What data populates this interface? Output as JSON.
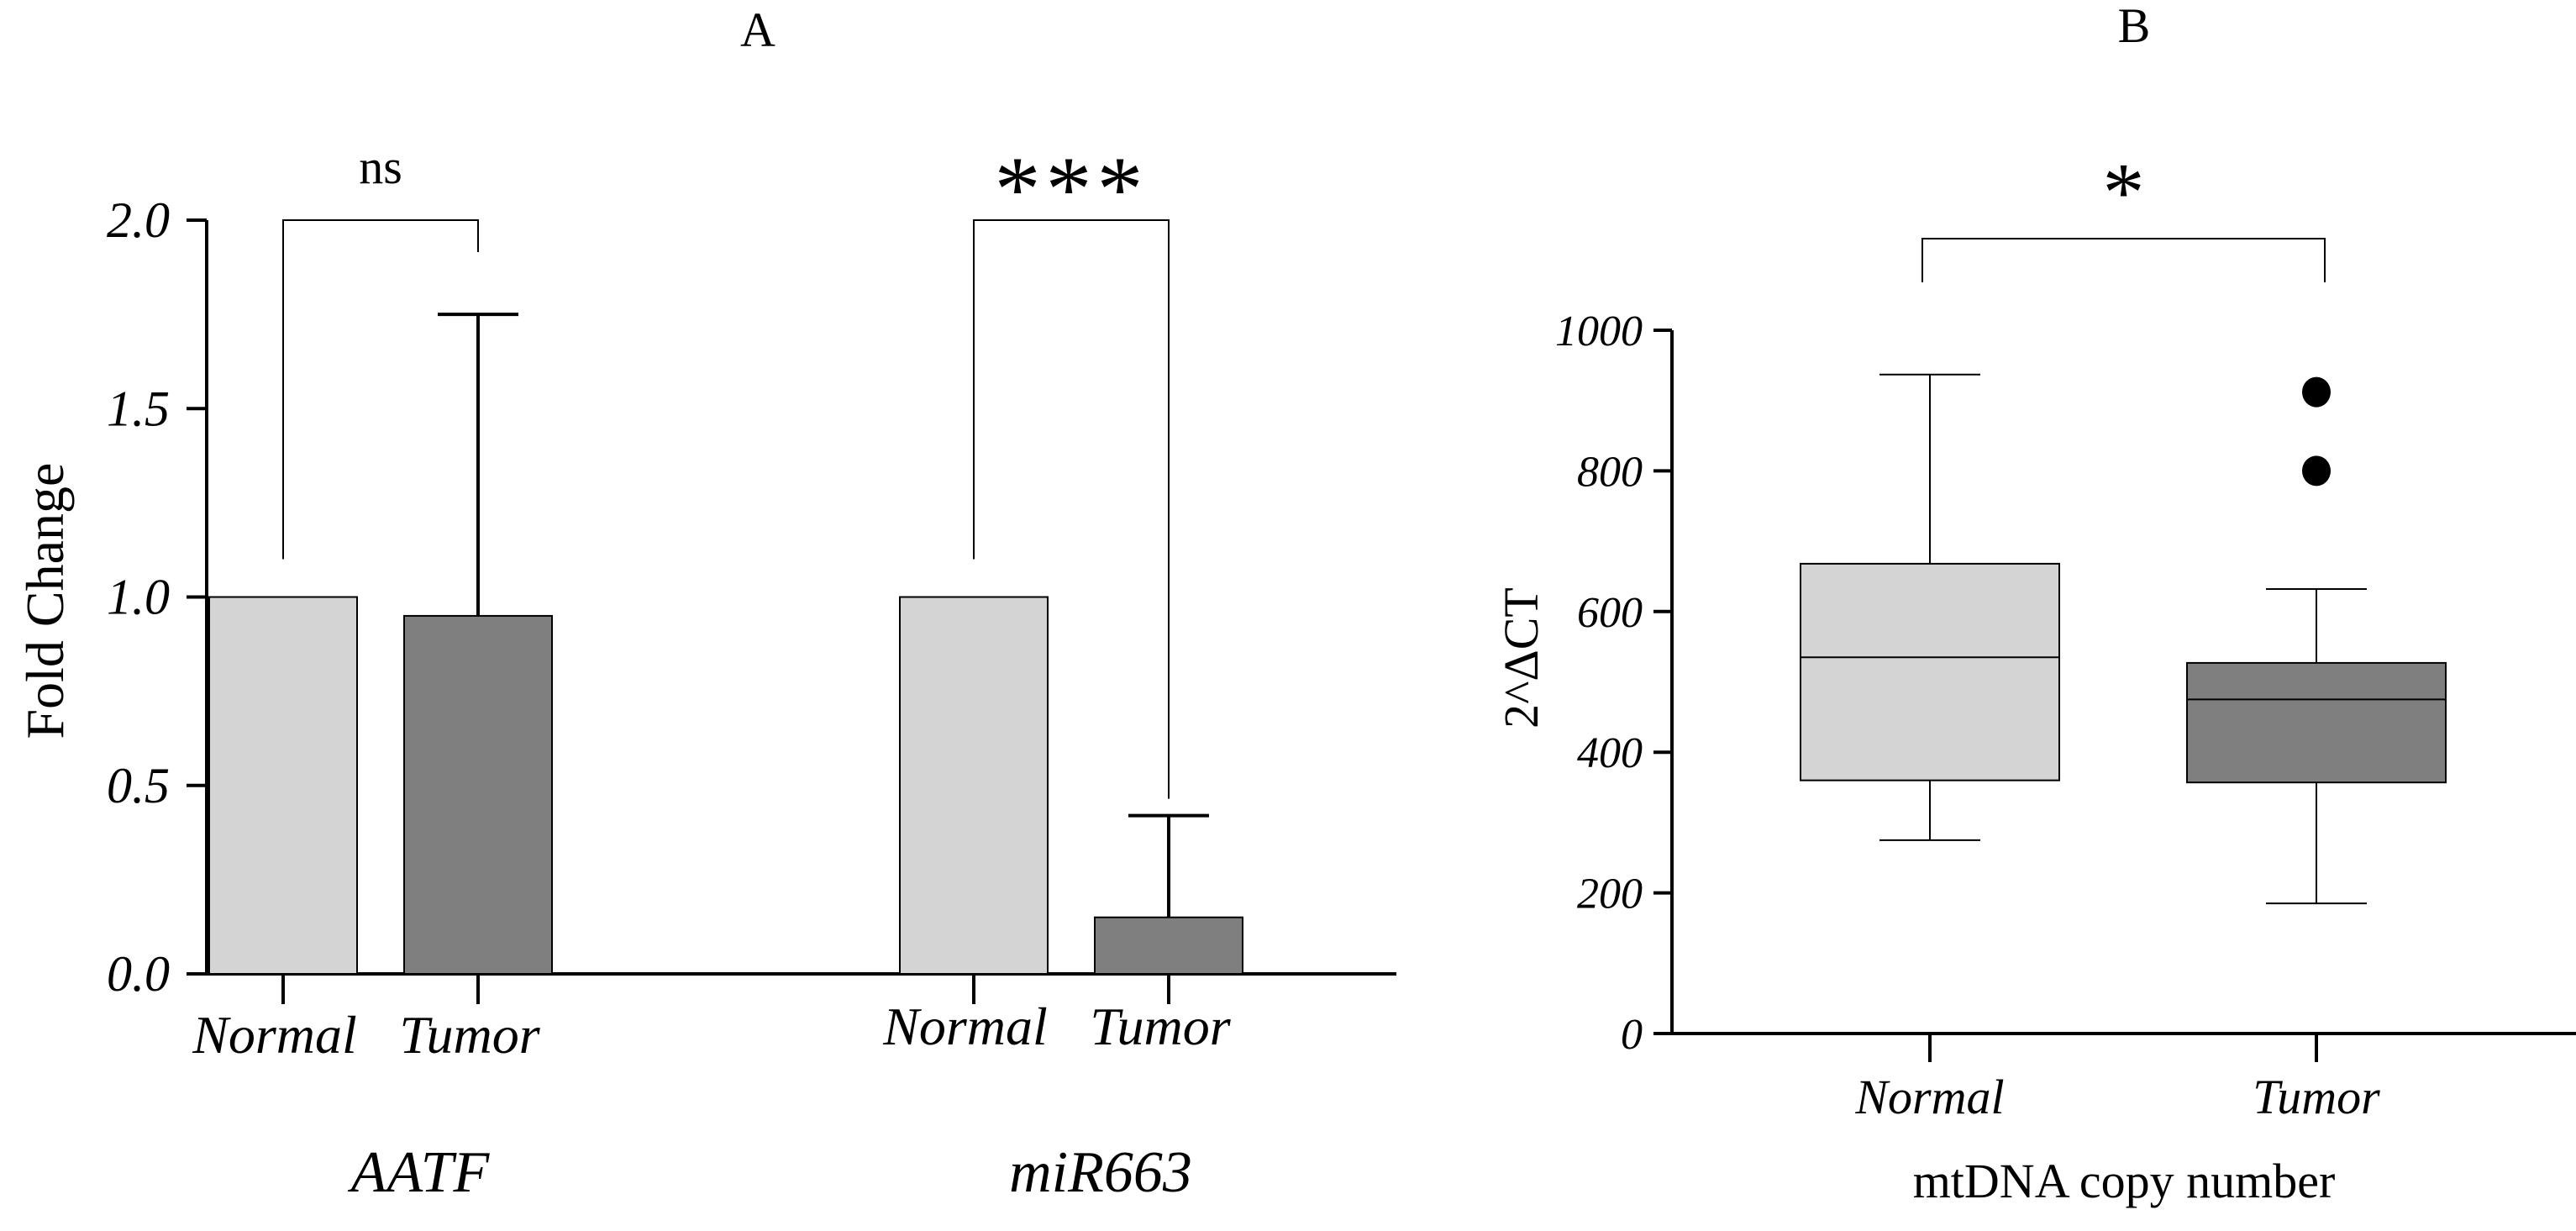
{
  "chart_data": [
    {
      "panel_label": "A",
      "type": "bar",
      "ylabel": "Fold Change",
      "ylim": [
        0,
        2.0
      ],
      "yticks": [
        "0.0",
        "0.5",
        "1.0",
        "1.5",
        "2.0"
      ],
      "groups": [
        {
          "name": "AATF",
          "categories": [
            "Normal",
            "Tumor"
          ],
          "values": [
            1.0,
            0.95
          ],
          "error_upper": [
            null,
            1.75
          ],
          "significance": "ns"
        },
        {
          "name": "miR663",
          "categories": [
            "Normal",
            "Tumor"
          ],
          "values": [
            1.0,
            0.15
          ],
          "error_upper": [
            null,
            0.42
          ],
          "significance": "***"
        }
      ],
      "colors": {
        "Normal": "#d4d4d4",
        "Tumor": "#7f7f7f",
        "significance_star": "#e8242e"
      }
    },
    {
      "panel_label": "B",
      "type": "box",
      "xlabel": "mtDNA copy number",
      "ylabel": "2^ΔCT",
      "ylim": [
        0,
        1000
      ],
      "yticks": [
        "0",
        "200",
        "400",
        "600",
        "800",
        "1000"
      ],
      "categories": [
        "Normal",
        "Tumor"
      ],
      "boxes": [
        {
          "name": "Normal",
          "whisker_low": 275,
          "q1": 360,
          "median": 535,
          "q3": 668,
          "whisker_high": 937,
          "outliers": []
        },
        {
          "name": "Tumor",
          "whisker_low": 185,
          "q1": 357,
          "median": 475,
          "q3": 527,
          "whisker_high": 632,
          "outliers": [
            912,
            800
          ]
        }
      ],
      "significance": "*",
      "colors": {
        "Normal": "#d4d4d4",
        "Tumor": "#7f7f7f",
        "significance_star": "#e8242e"
      }
    }
  ]
}
